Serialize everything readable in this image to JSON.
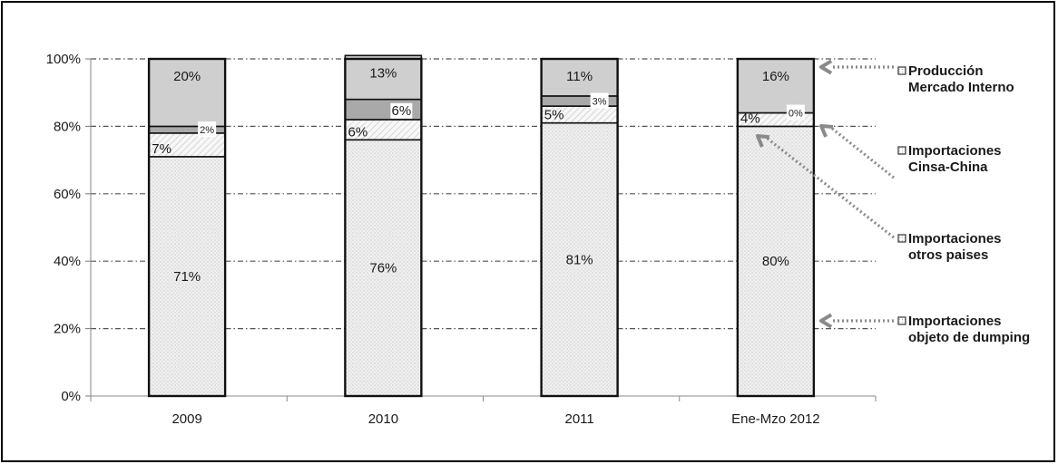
{
  "chart_data": {
    "type": "bar",
    "stacked": true,
    "percent": true,
    "categories": [
      "2009",
      "2010",
      "2011",
      "Ene-Mzo 2012"
    ],
    "series": [
      {
        "name": "Importaciones objeto de dumping",
        "values": [
          71,
          76,
          81,
          80
        ],
        "labels": [
          "71%",
          "76%",
          "81%",
          "80%"
        ],
        "color": "#eeeeee"
      },
      {
        "name": "Importaciones otros paises",
        "values": [
          7,
          6,
          5,
          4
        ],
        "labels": [
          "7%",
          "6%",
          "5%",
          "4%"
        ],
        "color": "#f2f2f2"
      },
      {
        "name": "Importaciones Cinsa-China",
        "values": [
          2,
          6,
          3,
          0
        ],
        "labels": [
          "2%",
          "6%",
          "3%",
          "0%"
        ],
        "color": "#a9a9a9"
      },
      {
        "name": "Producción Mercado Interno",
        "values": [
          20,
          13,
          11,
          16
        ],
        "labels": [
          "20%",
          "13%",
          "11%",
          "16%"
        ],
        "color": "#cfcfcf"
      }
    ],
    "y_ticks": [
      "0%",
      "20%",
      "40%",
      "60%",
      "80%",
      "100%"
    ],
    "ylim": [
      0,
      100
    ],
    "grid": true,
    "legend_position": "right",
    "legend": [
      {
        "lines": [
          "Producción",
          "Mercado Interno"
        ]
      },
      {
        "lines": [
          "Importaciones",
          "Cinsa-China"
        ]
      },
      {
        "lines": [
          "Importaciones",
          "otros paises"
        ]
      },
      {
        "lines": [
          "Importaciones",
          "objeto de dumping"
        ]
      }
    ]
  }
}
